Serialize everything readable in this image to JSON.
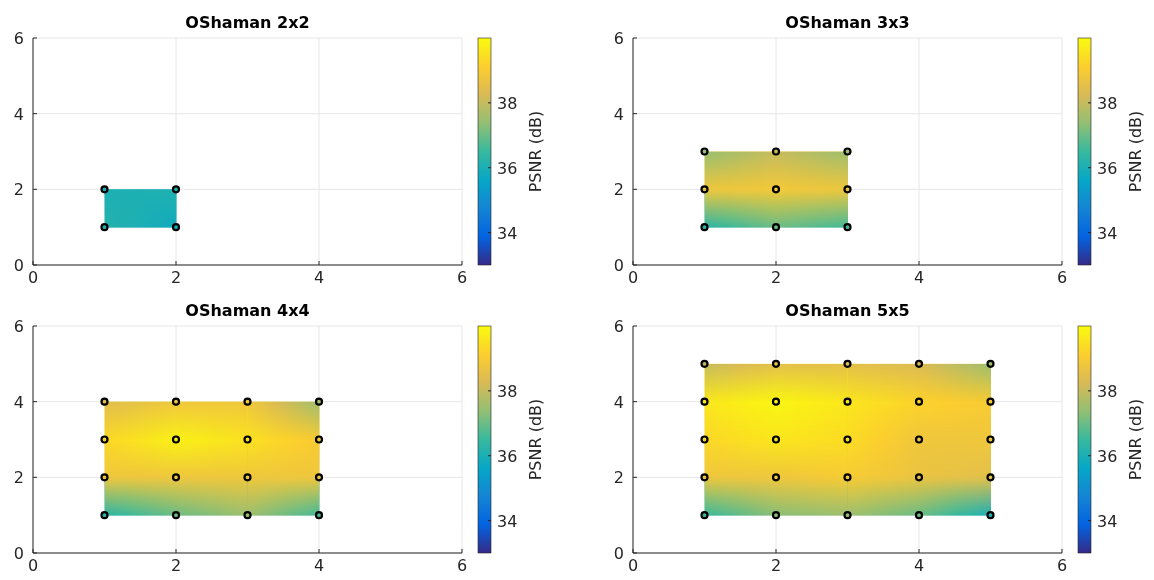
{
  "chart_data": [
    {
      "type": "scatter",
      "title": "OShaman 2x2",
      "x": [
        1,
        2,
        1,
        2
      ],
      "values": [
        1,
        1,
        2,
        2
      ],
      "cvalues": [
        36.2,
        35.8,
        36.0,
        36.1
      ],
      "color": "#000000",
      "marker": "circle",
      "xlim": [
        0,
        6
      ],
      "ylim": [
        0,
        6
      ],
      "xticks": [
        0,
        2,
        4,
        6
      ],
      "yticks": [
        0,
        2,
        4,
        6
      ],
      "grid": true,
      "clim": [
        33,
        40
      ],
      "cticks": [
        34,
        36,
        38
      ],
      "clabel": "PSNR (dB)"
    },
    {
      "type": "scatter",
      "title": "OShaman 3x3",
      "x": [
        1,
        2,
        3,
        1,
        2,
        3,
        1,
        2,
        3
      ],
      "values": [
        1,
        1,
        1,
        2,
        2,
        2,
        3,
        3,
        3
      ],
      "cvalues": [
        36.3,
        37.0,
        36.6,
        38.8,
        38.9,
        38.8,
        37.4,
        38.0,
        37.5
      ],
      "color": "#000000",
      "marker": "circle",
      "xlim": [
        0,
        6
      ],
      "ylim": [
        0,
        6
      ],
      "xticks": [
        0,
        2,
        4,
        6
      ],
      "yticks": [
        0,
        2,
        4,
        6
      ],
      "grid": true,
      "clim": [
        33,
        40
      ],
      "cticks": [
        34,
        36,
        38
      ],
      "clabel": "PSNR (dB)"
    },
    {
      "type": "scatter",
      "title": "OShaman 4x4",
      "x": [
        1,
        2,
        3,
        4,
        1,
        2,
        3,
        4,
        1,
        2,
        3,
        4,
        1,
        2,
        3,
        4
      ],
      "values": [
        1,
        1,
        1,
        1,
        2,
        2,
        2,
        2,
        3,
        3,
        3,
        3,
        4,
        4,
        4,
        4
      ],
      "cvalues": [
        36.3,
        37.0,
        37.5,
        36.6,
        38.8,
        38.8,
        38.8,
        38.8,
        39.3,
        39.8,
        39.5,
        39.0,
        38.4,
        38.8,
        38.8,
        37.5
      ],
      "color": "#000000",
      "marker": "circle",
      "xlim": [
        0,
        6
      ],
      "ylim": [
        0,
        6
      ],
      "xticks": [
        0,
        2,
        4,
        6
      ],
      "yticks": [
        0,
        2,
        4,
        6
      ],
      "grid": true,
      "clim": [
        33,
        40
      ],
      "cticks": [
        34,
        36,
        38
      ],
      "clabel": "PSNR (dB)"
    },
    {
      "type": "scatter",
      "title": "OShaman 5x5",
      "x": [
        1,
        2,
        3,
        4,
        5,
        1,
        2,
        3,
        4,
        5,
        1,
        2,
        3,
        4,
        5,
        1,
        2,
        3,
        4,
        5,
        1,
        2,
        3,
        4,
        5
      ],
      "values": [
        1,
        1,
        1,
        1,
        1,
        2,
        2,
        2,
        2,
        2,
        3,
        3,
        3,
        3,
        3,
        4,
        4,
        4,
        4,
        4,
        5,
        5,
        5,
        5,
        5
      ],
      "cvalues": [
        36.5,
        37.3,
        37.5,
        37.0,
        36.0,
        38.8,
        38.8,
        39.0,
        38.7,
        38.5,
        39.3,
        39.6,
        39.4,
        38.8,
        38.8,
        39.6,
        39.9,
        39.6,
        39.2,
        39.0,
        38.0,
        38.5,
        38.5,
        38.3,
        37.5
      ],
      "color": "#000000",
      "marker": "circle",
      "xlim": [
        0,
        6
      ],
      "ylim": [
        0,
        6
      ],
      "xticks": [
        0,
        2,
        4,
        6
      ],
      "yticks": [
        0,
        2,
        4,
        6
      ],
      "grid": true,
      "clim": [
        33,
        40
      ],
      "cticks": [
        34,
        36,
        38
      ],
      "clabel": "PSNR (dB)"
    }
  ]
}
